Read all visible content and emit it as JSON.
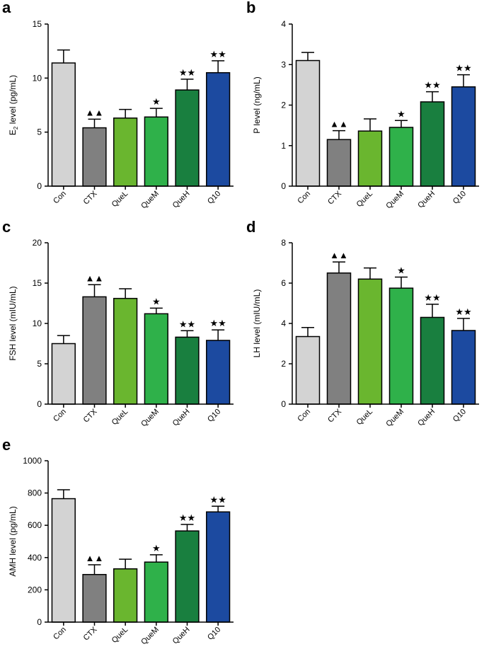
{
  "colors": {
    "Con": "#d3d3d3",
    "CTX": "#808080",
    "QueL": "#6ab62f",
    "QueM": "#2fb14a",
    "QueH": "#197f3f",
    "Q10": "#1c4aa0",
    "axis": "#000000"
  },
  "chart_data": [
    {
      "panel_label": "a",
      "type": "bar",
      "ylabel_main": "E",
      "ylabel_sub": "2",
      "ylabel_rest": " level (pg/mL)",
      "categories": [
        "Con",
        "CTX",
        "QueL",
        "QueM",
        "QueH",
        "Q10"
      ],
      "values": [
        11.4,
        5.4,
        6.3,
        6.4,
        8.9,
        10.5
      ],
      "errors": [
        1.2,
        0.8,
        0.8,
        0.8,
        1.0,
        1.1
      ],
      "ylim": [
        0,
        15
      ],
      "yticks": [
        0,
        5,
        10,
        15
      ],
      "marks": [
        "",
        "▲▲",
        "",
        "★",
        "★★",
        "★★"
      ]
    },
    {
      "panel_label": "b",
      "type": "bar",
      "ylabel_main": "P level (ng/mL)",
      "ylabel_sub": "",
      "ylabel_rest": "",
      "categories": [
        "Con",
        "CTX",
        "QueL",
        "QueM",
        "QueH",
        "Q10"
      ],
      "values": [
        3.1,
        1.15,
        1.36,
        1.45,
        2.08,
        2.45
      ],
      "errors": [
        0.2,
        0.22,
        0.3,
        0.17,
        0.25,
        0.3
      ],
      "ylim": [
        0,
        4
      ],
      "yticks": [
        0,
        1,
        2,
        3,
        4
      ],
      "marks": [
        "",
        "▲▲",
        "",
        "★",
        "★★",
        "★★"
      ]
    },
    {
      "panel_label": "c",
      "type": "bar",
      "ylabel_main": "FSH level (mIU/mL)",
      "ylabel_sub": "",
      "ylabel_rest": "",
      "categories": [
        "Con",
        "CTX",
        "QueL",
        "QueM",
        "QueH",
        "Q10"
      ],
      "values": [
        7.5,
        13.3,
        13.1,
        11.2,
        8.3,
        7.9
      ],
      "errors": [
        1.0,
        1.5,
        1.2,
        0.7,
        0.8,
        1.3
      ],
      "ylim": [
        0,
        20
      ],
      "yticks": [
        0,
        5,
        10,
        15,
        20
      ],
      "marks": [
        "",
        "▲▲",
        "",
        "★",
        "★★",
        "★★"
      ]
    },
    {
      "panel_label": "d",
      "type": "bar",
      "ylabel_main": "LH level (mIU/mL)",
      "ylabel_sub": "",
      "ylabel_rest": "",
      "categories": [
        "Con",
        "CTX",
        "QueL",
        "QueM",
        "QueH",
        "Q10"
      ],
      "values": [
        3.35,
        6.5,
        6.2,
        5.75,
        4.3,
        3.65
      ],
      "errors": [
        0.45,
        0.55,
        0.55,
        0.55,
        0.65,
        0.6
      ],
      "ylim": [
        0,
        8
      ],
      "yticks": [
        0,
        2,
        4,
        6,
        8
      ],
      "marks": [
        "",
        "▲▲",
        "",
        "★",
        "★★",
        "★★"
      ]
    },
    {
      "panel_label": "e",
      "type": "bar",
      "ylabel_main": "AMH level (pg/mL)",
      "ylabel_sub": "",
      "ylabel_rest": "",
      "categories": [
        "Con",
        "CTX",
        "QueL",
        "QueM",
        "QueH",
        "Q10"
      ],
      "values": [
        765,
        295,
        330,
        372,
        565,
        683
      ],
      "errors": [
        55,
        60,
        60,
        45,
        40,
        35
      ],
      "ylim": [
        0,
        1000
      ],
      "yticks": [
        0,
        200,
        400,
        600,
        800,
        1000
      ],
      "marks": [
        "",
        "▲▲",
        "",
        "★",
        "★★",
        "★★"
      ]
    }
  ]
}
